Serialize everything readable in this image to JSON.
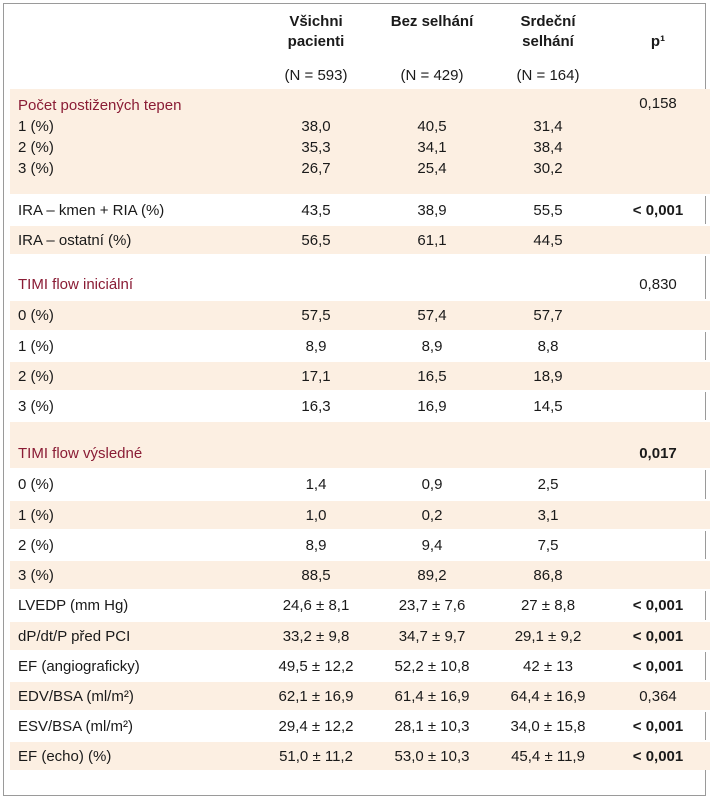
{
  "header": {
    "columns": [
      "Všichni pacienti",
      "Bez selhání",
      "Srdeční selhání",
      "p¹"
    ],
    "col1_line1": "Všichni",
    "col1_line2": "pacienti",
    "col2_line1": "Bez selhání",
    "col3_line1": "Srdeční",
    "col3_line2": "selhání",
    "col4": "p¹",
    "n_all": "(N = 593)",
    "n_no_failure": "(N = 429)",
    "n_failure": "(N = 164)"
  },
  "arteries": {
    "title": "Počet postižených tepen",
    "p": "0,158",
    "rows": [
      {
        "label": "1 (%)",
        "all": "38,0",
        "no_failure": "40,5",
        "failure": "31,4"
      },
      {
        "label": "2 (%)",
        "all": "35,3",
        "no_failure": "34,1",
        "failure": "38,4"
      },
      {
        "label": "3 (%)",
        "all": "26,7",
        "no_failure": "25,4",
        "failure": "30,2"
      }
    ]
  },
  "ira_main": {
    "label": "IRA – kmen + RIA (%)",
    "all": "43,5",
    "no_failure": "38,9",
    "failure": "55,5",
    "p": "< 0,001"
  },
  "ira_other": {
    "label": "IRA – ostatní (%)",
    "all": "56,5",
    "no_failure": "61,1",
    "failure": "44,5",
    "p": ""
  },
  "timi_initial": {
    "title": "TIMI flow iniciální",
    "p": "0,830",
    "rows": [
      {
        "label": "0 (%)",
        "all": "57,5",
        "no_failure": "57,4",
        "failure": "57,7"
      },
      {
        "label": "1 (%)",
        "all": "8,9",
        "no_failure": "8,9",
        "failure": "8,8"
      },
      {
        "label": "2 (%)",
        "all": "17,1",
        "no_failure": "16,5",
        "failure": "18,9"
      },
      {
        "label": "3 (%)",
        "all": "16,3",
        "no_failure": "16,9",
        "failure": "14,5"
      }
    ]
  },
  "timi_final": {
    "title": "TIMI flow výsledné",
    "p": "0,017",
    "rows": [
      {
        "label": "0 (%)",
        "all": "1,4",
        "no_failure": "0,9",
        "failure": "2,5"
      },
      {
        "label": "1 (%)",
        "all": "1,0",
        "no_failure": "0,2",
        "failure": "3,1"
      },
      {
        "label": "2 (%)",
        "all": "8,9",
        "no_failure": "9,4",
        "failure": "7,5"
      },
      {
        "label": "3 (%)",
        "all": "88,5",
        "no_failure": "89,2",
        "failure": "86,8"
      }
    ]
  },
  "measures": [
    {
      "label": "LVEDP (mm Hg)",
      "all": "24,6 ± 8,1",
      "no_failure": "23,7 ± 7,6",
      "failure": "27 ± 8,8",
      "p": "< 0,001"
    },
    {
      "label": "dP/dt/P před PCI",
      "all": "33,2 ± 9,8",
      "no_failure": "34,7 ± 9,7",
      "failure": "29,1 ± 9,2",
      "p": "< 0,001"
    },
    {
      "label": "EF (angiograficky)",
      "all": "49,5 ± 12,2",
      "no_failure": "52,2 ± 10,8",
      "failure": "42 ± 13",
      "p": "< 0,001"
    },
    {
      "label": "EDV/BSA (ml/m²)",
      "all": "62,1 ± 16,9",
      "no_failure": "61,4 ± 16,9",
      "failure": "64,4 ± 16,9",
      "p": "0,364"
    },
    {
      "label": "ESV/BSA (ml/m²)",
      "all": "29,4 ± 12,2",
      "no_failure": "28,1 ± 10,3",
      "failure": "34,0 ± 15,8",
      "p": "< 0,001"
    },
    {
      "label": "EF (echo) (%)",
      "all": "51,0 ± 11,2",
      "no_failure": "53,0 ± 10,3",
      "failure": "45,4 ± 11,9",
      "p": "< 0,001"
    }
  ],
  "colors": {
    "shade": "#fcefe2",
    "section_title": "#8a1c35"
  }
}
